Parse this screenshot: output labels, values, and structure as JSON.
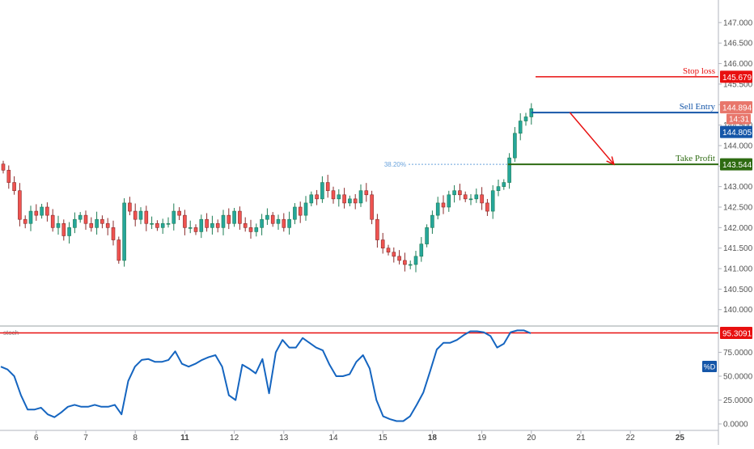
{
  "chart_data": {
    "type": "candlestick",
    "price_axis": {
      "ticks": [
        "147.000",
        "146.500",
        "146.000",
        "145.500",
        "145.000",
        "144.500",
        "144.000",
        "143.500",
        "143.000",
        "142.500",
        "142.000",
        "141.500",
        "141.000",
        "140.500",
        "140.000"
      ],
      "ylim": [
        139.6,
        147.55
      ]
    },
    "time_axis": {
      "ticks": [
        {
          "label": "6",
          "bar": 6,
          "bold": false
        },
        {
          "label": "7",
          "bar": 15,
          "bold": false
        },
        {
          "label": "8",
          "bar": 24,
          "bold": false
        },
        {
          "label": "11",
          "bar": 33,
          "bold": true
        },
        {
          "label": "12",
          "bar": 42,
          "bold": false
        },
        {
          "label": "13",
          "bar": 51,
          "bold": false
        },
        {
          "label": "14",
          "bar": 60,
          "bold": false
        },
        {
          "label": "15",
          "bar": 69,
          "bold": false
        },
        {
          "label": "18",
          "bar": 78,
          "bold": true
        },
        {
          "label": "19",
          "bar": 87,
          "bold": false
        },
        {
          "label": "20",
          "bar": 96,
          "bold": false
        },
        {
          "label": "21",
          "bar": 105,
          "bold": false
        },
        {
          "label": "22",
          "bar": 114,
          "bold": false
        },
        {
          "label": "25",
          "bar": 123,
          "bold": true
        }
      ]
    },
    "closes": [
      143.4,
      143.1,
      142.9,
      142.2,
      142.1,
      142.4,
      142.3,
      142.5,
      142.3,
      142.0,
      142.1,
      141.8,
      142.0,
      142.2,
      142.3,
      142.1,
      142.0,
      142.2,
      142.1,
      142.0,
      141.7,
      141.2,
      142.6,
      142.4,
      142.2,
      142.4,
      142.1,
      142.1,
      142.0,
      142.1,
      142.1,
      142.4,
      142.3,
      142.0,
      142.0,
      141.9,
      142.2,
      142.0,
      142.1,
      142.0,
      142.3,
      142.1,
      142.4,
      142.1,
      142.0,
      141.9,
      142.0,
      142.2,
      142.3,
      142.1,
      142.2,
      142.0,
      142.2,
      142.5,
      142.3,
      142.6,
      142.8,
      142.7,
      143.1,
      142.9,
      142.7,
      142.8,
      142.6,
      142.7,
      142.6,
      142.9,
      142.8,
      142.2,
      141.7,
      141.5,
      141.4,
      141.3,
      141.2,
      141.1,
      141.1,
      141.3,
      141.6,
      142.0,
      142.3,
      142.6,
      142.5,
      142.8,
      142.9,
      142.8,
      142.7,
      142.7,
      142.8,
      142.6,
      142.4,
      142.9,
      143.0,
      143.1,
      143.7,
      144.3,
      144.6,
      144.7,
      144.9
    ],
    "levels": [
      {
        "name": "Stop loss",
        "value": 145.679,
        "label": "145.679",
        "color": "#e81010"
      },
      {
        "name": "Sell Entry",
        "value": 144.805,
        "label": "144.805",
        "color": "#1556a8"
      },
      {
        "name": "Take Profit",
        "value": 143.544,
        "label": "143.544",
        "color": "#2e6b12"
      }
    ],
    "current_price": {
      "label": "144.894",
      "value": 144.894,
      "countdown": "14:31",
      "color": "#e8766b"
    },
    "fib": {
      "label": "38.20%",
      "value": 143.544,
      "color": "#6aa3dc"
    },
    "arrow": {
      "from_bar": 103,
      "from_price": 144.805,
      "to_bar": 111,
      "to_price": 143.544,
      "color": "#e81010"
    },
    "oscillator": {
      "name": "stoch",
      "line_label": "%D",
      "ticks": [
        "75.0000",
        "50.0000",
        "25.0000",
        "0.0000"
      ],
      "ylim": [
        0,
        100
      ],
      "level": 95.3091,
      "level_label": "95.3091",
      "values": [
        60,
        57,
        50,
        30,
        15,
        15,
        17,
        10,
        7,
        12,
        18,
        20,
        18,
        18,
        20,
        18,
        18,
        20,
        10,
        45,
        60,
        67,
        68,
        65,
        65,
        67,
        76,
        63,
        60,
        63,
        67,
        70,
        72,
        60,
        30,
        25,
        62,
        58,
        53,
        68,
        32,
        75,
        88,
        80,
        80,
        90,
        85,
        80,
        77,
        62,
        50,
        50,
        52,
        65,
        72,
        58,
        25,
        8,
        5,
        3,
        3,
        8,
        20,
        33,
        55,
        78,
        85,
        85,
        88,
        93,
        97,
        97,
        96,
        92,
        80,
        84,
        96,
        98,
        98,
        95
      ]
    }
  }
}
